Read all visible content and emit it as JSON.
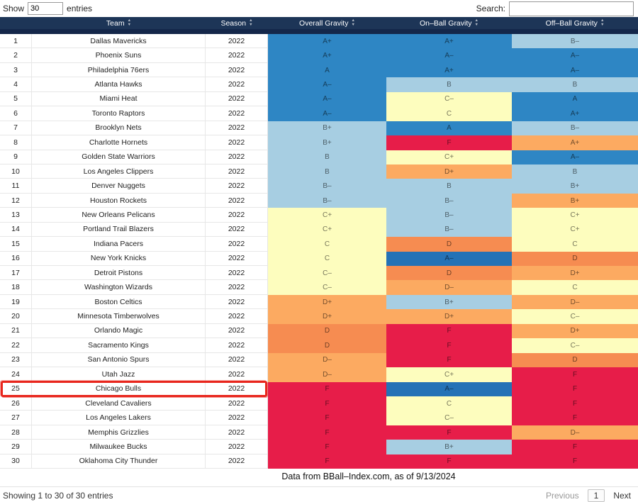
{
  "controls": {
    "show_label": "Show",
    "entries_value": "30",
    "entries_label": "entries",
    "search_label": "Search:"
  },
  "table": {
    "headers": [
      "",
      "Team",
      "Season",
      "Overall Gravity",
      "On–Ball Gravity",
      "Off–Ball Gravity"
    ],
    "palette": {
      "blue": "#2e86c4",
      "blueDark": "#2472b6",
      "lightBlue": "#a7cee2",
      "yellow": "#fdfdbe",
      "orange": "#fcaa61",
      "orangeDark": "#f68c51",
      "red": "#e71d49"
    },
    "rows": [
      {
        "rank": 1,
        "team": "Dallas Mavericks",
        "season": "2022",
        "overall": {
          "grade": "A+",
          "color": "blue"
        },
        "on_ball": {
          "grade": "A+",
          "color": "blue"
        },
        "off_ball": {
          "grade": "B–",
          "color": "lightBlue"
        },
        "highlighted": false
      },
      {
        "rank": 2,
        "team": "Phoenix Suns",
        "season": "2022",
        "overall": {
          "grade": "A+",
          "color": "blue"
        },
        "on_ball": {
          "grade": "A–",
          "color": "blue"
        },
        "off_ball": {
          "grade": "A–",
          "color": "blue"
        },
        "highlighted": false
      },
      {
        "rank": 3,
        "team": "Philadelphia 76ers",
        "season": "2022",
        "overall": {
          "grade": "A",
          "color": "blue"
        },
        "on_ball": {
          "grade": "A+",
          "color": "blue"
        },
        "off_ball": {
          "grade": "A–",
          "color": "blue"
        },
        "highlighted": false
      },
      {
        "rank": 4,
        "team": "Atlanta Hawks",
        "season": "2022",
        "overall": {
          "grade": "A–",
          "color": "blue"
        },
        "on_ball": {
          "grade": "B",
          "color": "lightBlue"
        },
        "off_ball": {
          "grade": "B",
          "color": "lightBlue"
        },
        "highlighted": false
      },
      {
        "rank": 5,
        "team": "Miami Heat",
        "season": "2022",
        "overall": {
          "grade": "A–",
          "color": "blue"
        },
        "on_ball": {
          "grade": "C–",
          "color": "yellow"
        },
        "off_ball": {
          "grade": "A",
          "color": "blue"
        },
        "highlighted": false
      },
      {
        "rank": 6,
        "team": "Toronto Raptors",
        "season": "2022",
        "overall": {
          "grade": "A–",
          "color": "blue"
        },
        "on_ball": {
          "grade": "C",
          "color": "yellow"
        },
        "off_ball": {
          "grade": "A+",
          "color": "blue"
        },
        "highlighted": false
      },
      {
        "rank": 7,
        "team": "Brooklyn Nets",
        "season": "2022",
        "overall": {
          "grade": "B+",
          "color": "lightBlue"
        },
        "on_ball": {
          "grade": "A",
          "color": "blue"
        },
        "off_ball": {
          "grade": "B–",
          "color": "lightBlue"
        },
        "highlighted": false
      },
      {
        "rank": 8,
        "team": "Charlotte Hornets",
        "season": "2022",
        "overall": {
          "grade": "B+",
          "color": "lightBlue"
        },
        "on_ball": {
          "grade": "F",
          "color": "red"
        },
        "off_ball": {
          "grade": "A+",
          "color": "orange"
        },
        "highlighted": false
      },
      {
        "rank": 9,
        "team": "Golden State Warriors",
        "season": "2022",
        "overall": {
          "grade": "B",
          "color": "lightBlue"
        },
        "on_ball": {
          "grade": "C+",
          "color": "yellow"
        },
        "off_ball": {
          "grade": "A–",
          "color": "blue"
        },
        "highlighted": false
      },
      {
        "rank": 10,
        "team": "Los Angeles Clippers",
        "season": "2022",
        "overall": {
          "grade": "B",
          "color": "lightBlue"
        },
        "on_ball": {
          "grade": "D+",
          "color": "orange"
        },
        "off_ball": {
          "grade": "B",
          "color": "lightBlue"
        },
        "highlighted": false
      },
      {
        "rank": 11,
        "team": "Denver Nuggets",
        "season": "2022",
        "overall": {
          "grade": "B–",
          "color": "lightBlue"
        },
        "on_ball": {
          "grade": "B",
          "color": "lightBlue"
        },
        "off_ball": {
          "grade": "B+",
          "color": "lightBlue"
        },
        "highlighted": false
      },
      {
        "rank": 12,
        "team": "Houston Rockets",
        "season": "2022",
        "overall": {
          "grade": "B–",
          "color": "lightBlue"
        },
        "on_ball": {
          "grade": "B–",
          "color": "lightBlue"
        },
        "off_ball": {
          "grade": "B+",
          "color": "orange"
        },
        "highlighted": false
      },
      {
        "rank": 13,
        "team": "New Orleans Pelicans",
        "season": "2022",
        "overall": {
          "grade": "C+",
          "color": "yellow"
        },
        "on_ball": {
          "grade": "B–",
          "color": "lightBlue"
        },
        "off_ball": {
          "grade": "C+",
          "color": "yellow"
        },
        "highlighted": false
      },
      {
        "rank": 14,
        "team": "Portland Trail Blazers",
        "season": "2022",
        "overall": {
          "grade": "C+",
          "color": "yellow"
        },
        "on_ball": {
          "grade": "B–",
          "color": "lightBlue"
        },
        "off_ball": {
          "grade": "C+",
          "color": "yellow"
        },
        "highlighted": false
      },
      {
        "rank": 15,
        "team": "Indiana Pacers",
        "season": "2022",
        "overall": {
          "grade": "C",
          "color": "yellow"
        },
        "on_ball": {
          "grade": "D",
          "color": "orangeDark"
        },
        "off_ball": {
          "grade": "C",
          "color": "yellow"
        },
        "highlighted": false
      },
      {
        "rank": 16,
        "team": "New York Knicks",
        "season": "2022",
        "overall": {
          "grade": "C",
          "color": "yellow"
        },
        "on_ball": {
          "grade": "A–",
          "color": "blueDark"
        },
        "off_ball": {
          "grade": "D",
          "color": "orangeDark"
        },
        "highlighted": false
      },
      {
        "rank": 17,
        "team": "Detroit Pistons",
        "season": "2022",
        "overall": {
          "grade": "C–",
          "color": "yellow"
        },
        "on_ball": {
          "grade": "D",
          "color": "orangeDark"
        },
        "off_ball": {
          "grade": "D+",
          "color": "orange"
        },
        "highlighted": false
      },
      {
        "rank": 18,
        "team": "Washington Wizards",
        "season": "2022",
        "overall": {
          "grade": "C–",
          "color": "yellow"
        },
        "on_ball": {
          "grade": "D–",
          "color": "orange"
        },
        "off_ball": {
          "grade": "C",
          "color": "yellow"
        },
        "highlighted": false
      },
      {
        "rank": 19,
        "team": "Boston Celtics",
        "season": "2022",
        "overall": {
          "grade": "D+",
          "color": "orange"
        },
        "on_ball": {
          "grade": "B+",
          "color": "lightBlue"
        },
        "off_ball": {
          "grade": "D–",
          "color": "orange"
        },
        "highlighted": false
      },
      {
        "rank": 20,
        "team": "Minnesota Timberwolves",
        "season": "2022",
        "overall": {
          "grade": "D+",
          "color": "orange"
        },
        "on_ball": {
          "grade": "D+",
          "color": "orange"
        },
        "off_ball": {
          "grade": "C–",
          "color": "yellow"
        },
        "highlighted": false
      },
      {
        "rank": 21,
        "team": "Orlando Magic",
        "season": "2022",
        "overall": {
          "grade": "D",
          "color": "orangeDark"
        },
        "on_ball": {
          "grade": "F",
          "color": "red"
        },
        "off_ball": {
          "grade": "D+",
          "color": "orange"
        },
        "highlighted": false
      },
      {
        "rank": 22,
        "team": "Sacramento Kings",
        "season": "2022",
        "overall": {
          "grade": "D",
          "color": "orangeDark"
        },
        "on_ball": {
          "grade": "F",
          "color": "red"
        },
        "off_ball": {
          "grade": "C–",
          "color": "yellow"
        },
        "highlighted": false
      },
      {
        "rank": 23,
        "team": "San Antonio Spurs",
        "season": "2022",
        "overall": {
          "grade": "D–",
          "color": "orange"
        },
        "on_ball": {
          "grade": "F",
          "color": "red"
        },
        "off_ball": {
          "grade": "D",
          "color": "orangeDark"
        },
        "highlighted": false
      },
      {
        "rank": 24,
        "team": "Utah Jazz",
        "season": "2022",
        "overall": {
          "grade": "D–",
          "color": "orange"
        },
        "on_ball": {
          "grade": "C+",
          "color": "yellow"
        },
        "off_ball": {
          "grade": "F",
          "color": "red"
        },
        "highlighted": false
      },
      {
        "rank": 25,
        "team": "Chicago Bulls",
        "season": "2022",
        "overall": {
          "grade": "F",
          "color": "red"
        },
        "on_ball": {
          "grade": "A–",
          "color": "blueDark"
        },
        "off_ball": {
          "grade": "F",
          "color": "red"
        },
        "highlighted": true
      },
      {
        "rank": 26,
        "team": "Cleveland Cavaliers",
        "season": "2022",
        "overall": {
          "grade": "F",
          "color": "red"
        },
        "on_ball": {
          "grade": "C",
          "color": "yellow"
        },
        "off_ball": {
          "grade": "F",
          "color": "red"
        },
        "highlighted": false
      },
      {
        "rank": 27,
        "team": "Los Angeles Lakers",
        "season": "2022",
        "overall": {
          "grade": "F",
          "color": "red"
        },
        "on_ball": {
          "grade": "C–",
          "color": "yellow"
        },
        "off_ball": {
          "grade": "F",
          "color": "red"
        },
        "highlighted": false
      },
      {
        "rank": 28,
        "team": "Memphis Grizzlies",
        "season": "2022",
        "overall": {
          "grade": "F",
          "color": "red"
        },
        "on_ball": {
          "grade": "F",
          "color": "red"
        },
        "off_ball": {
          "grade": "D–",
          "color": "orange"
        },
        "highlighted": false
      },
      {
        "rank": 29,
        "team": "Milwaukee Bucks",
        "season": "2022",
        "overall": {
          "grade": "F",
          "color": "red"
        },
        "on_ball": {
          "grade": "B+",
          "color": "lightBlue"
        },
        "off_ball": {
          "grade": "F",
          "color": "red"
        },
        "highlighted": false
      },
      {
        "rank": 30,
        "team": "Oklahoma City Thunder",
        "season": "2022",
        "overall": {
          "grade": "F",
          "color": "red"
        },
        "on_ball": {
          "grade": "F",
          "color": "red"
        },
        "off_ball": {
          "grade": "F",
          "color": "red"
        },
        "highlighted": false
      }
    ]
  },
  "caption": "Data from BBall–Index.com, as of 9/13/2024",
  "footer": {
    "info": "Showing 1 to 30 of 30 entries",
    "previous": "Previous",
    "page": "1",
    "next": "Next"
  }
}
